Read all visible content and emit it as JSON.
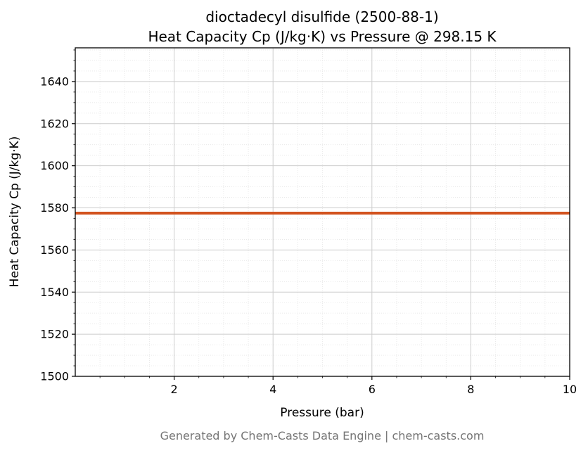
{
  "chart_data": {
    "type": "line",
    "title_line1": "dioctadecyl disulfide (2500-88-1)",
    "title_line2": "Heat Capacity Cp (J/kg·K) vs Pressure @ 298.15 K",
    "xlabel": "Pressure (bar)",
    "ylabel": "Heat Capacity Cp (J/kg·K)",
    "footer": "Generated by Chem-Casts Data Engine | chem-casts.com",
    "xlim": [
      0,
      10
    ],
    "ylim": [
      1500,
      1656
    ],
    "x_ticks": [
      2,
      4,
      6,
      8,
      10
    ],
    "y_ticks": [
      1500,
      1520,
      1540,
      1560,
      1580,
      1600,
      1620,
      1640
    ],
    "x_minor_step": 0.5,
    "y_minor_step": 5,
    "grid": true,
    "legend": false,
    "series": [
      {
        "name": "Heat Capacity Cp",
        "color": "#d2521e",
        "line_width": 4,
        "x": [
          0,
          10
        ],
        "y": [
          1577.5,
          1577.5
        ]
      }
    ]
  }
}
